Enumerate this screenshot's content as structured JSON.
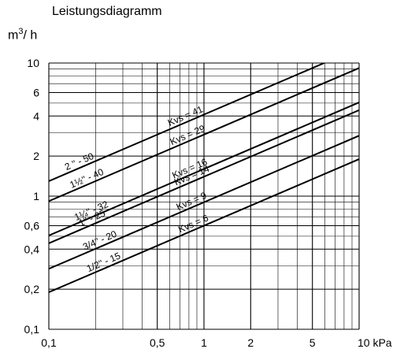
{
  "chart_data": {
    "type": "line",
    "title": "Leistungsdiagramm",
    "ylabel": "m³/h",
    "xlabel": "",
    "x_scale": "log",
    "y_scale": "log",
    "xlim": [
      0.1,
      10
    ],
    "ylim": [
      0.1,
      10
    ],
    "x_ticks": [
      {
        "value": 0.1,
        "label": "0,1"
      },
      {
        "value": 0.5,
        "label": "0,5"
      },
      {
        "value": 1,
        "label": "1"
      },
      {
        "value": 2,
        "label": "2"
      },
      {
        "value": 5,
        "label": "5"
      },
      {
        "value": 10,
        "label": "10 kPa"
      }
    ],
    "y_ticks": [
      {
        "value": 0.1,
        "label": "0,1"
      },
      {
        "value": 0.2,
        "label": "0,2"
      },
      {
        "value": 0.4,
        "label": "0,4"
      },
      {
        "value": 0.6,
        "label": "0,6"
      },
      {
        "value": 1,
        "label": "1"
      },
      {
        "value": 2,
        "label": "2"
      },
      {
        "value": 4,
        "label": "4"
      },
      {
        "value": 6,
        "label": "6"
      },
      {
        "value": 10,
        "label": "10"
      }
    ],
    "grid": true,
    "series": [
      {
        "kvs": 41,
        "kvs_label": "Kvs = 41",
        "size_label": "2 '' - 50"
      },
      {
        "kvs": 29,
        "kvs_label": "Kvs = 29",
        "size_label": "1½'' - 40"
      },
      {
        "kvs": 16,
        "kvs_label": "Kvs = 16",
        "size_label": "1¼'' - 32"
      },
      {
        "kvs": 14,
        "kvs_label": "Kvs = 14",
        "size_label": "1'' - 25"
      },
      {
        "kvs": 9,
        "kvs_label": "Kvs = 9",
        "size_label": "3/4'' - 20"
      },
      {
        "kvs": 6,
        "kvs_label": "Kvs = 6",
        "size_label": "1/2'' - 15"
      }
    ]
  }
}
